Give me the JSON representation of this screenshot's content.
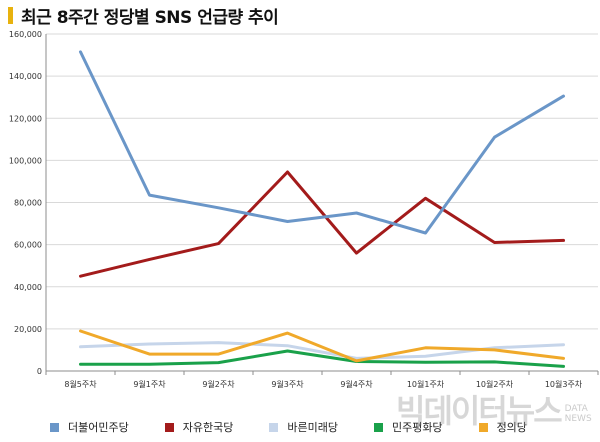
{
  "title": "최근 8주간 정당별 SNS 언급량 추이",
  "colors": {
    "title_accent": "#e8b20e",
    "grid": "#d9d9d9",
    "axis": "#8c8c8c"
  },
  "watermark": {
    "main": "빅데이터뉴스",
    "sub_top": "DATA",
    "sub_bottom": "NEWS"
  },
  "chart_data": {
    "type": "line",
    "categories": [
      "8월5주차",
      "9월1주차",
      "9월2주차",
      "9월3주차",
      "9월4주차",
      "10월1주차",
      "10월2주차",
      "10월3주차"
    ],
    "ylim": [
      0,
      160000
    ],
    "yticks": [
      0,
      20000,
      40000,
      60000,
      80000,
      100000,
      120000,
      140000,
      160000
    ],
    "ytick_labels": [
      "0",
      "20,000",
      "40,000",
      "60,000",
      "80,000",
      "100,000",
      "120,000",
      "140,000",
      "160,000"
    ],
    "grid": true,
    "legend_position": "bottom",
    "series": [
      {
        "name": "더불어민주당",
        "color": "#6a96c8",
        "values": [
          151500,
          83500,
          77500,
          71000,
          75000,
          65500,
          111000,
          130500
        ]
      },
      {
        "name": "자유한국당",
        "color": "#a31b1b",
        "values": [
          45000,
          53000,
          60500,
          94500,
          56000,
          82000,
          61000,
          62000
        ]
      },
      {
        "name": "바른미래당",
        "color": "#c6d5ea",
        "values": [
          11500,
          12800,
          13500,
          12000,
          6000,
          7000,
          11000,
          12500
        ]
      },
      {
        "name": "민주평화당",
        "color": "#1aa14a",
        "values": [
          3200,
          3200,
          4000,
          9500,
          4500,
          4200,
          4300,
          2200
        ]
      },
      {
        "name": "정의당",
        "color": "#f0a92a",
        "values": [
          19000,
          8000,
          8000,
          18000,
          4800,
          11000,
          10000,
          6000
        ]
      }
    ]
  }
}
